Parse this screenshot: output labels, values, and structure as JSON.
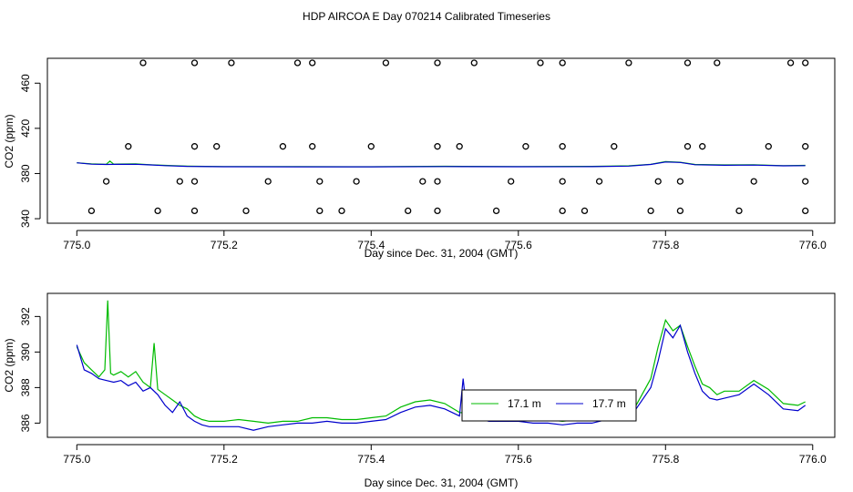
{
  "figure": {
    "title": "HDP AIRCOA E  Day 070214  Calibrated Timeseries"
  },
  "colors": {
    "green": "#00bb00",
    "blue": "#0000cc",
    "axis": "#000000"
  },
  "chart_data": [
    {
      "type": "line",
      "title": "",
      "xlabel": "Day since Dec. 31, 2004 (GMT)",
      "ylabel": "CO2 (ppm)",
      "xlim": [
        774.96,
        776.03
      ],
      "ylim": [
        336,
        482
      ],
      "xticks": [
        775.0,
        775.2,
        775.4,
        775.6,
        775.8,
        776.0
      ],
      "xtick_labels": [
        "775.0",
        "775.2",
        "775.4",
        "775.6",
        "775.8",
        "776.0"
      ],
      "yticks": [
        340,
        380,
        420,
        460
      ],
      "ytick_labels": [
        "340",
        "380",
        "420",
        "460"
      ],
      "grid": false,
      "legend": null,
      "series": [
        {
          "name": "",
          "color": "green",
          "x": [
            775.0,
            775.02,
            775.04,
            775.045,
            775.05,
            775.08,
            775.1,
            775.12,
            775.15,
            775.2,
            775.3,
            775.4,
            775.5,
            775.6,
            775.7,
            775.75,
            775.78,
            775.8,
            775.82,
            775.84,
            775.88,
            775.92,
            775.96,
            775.99
          ],
          "y": [
            389.5,
            388.5,
            388.2,
            391.0,
            388.3,
            388.6,
            387.8,
            387.2,
            386.6,
            386.2,
            386.1,
            386.0,
            386.4,
            386.2,
            386.3,
            386.8,
            388.2,
            390.5,
            390.0,
            388.0,
            387.6,
            387.8,
            387.0,
            387.2
          ]
        },
        {
          "name": "",
          "color": "blue",
          "x": [
            775.0,
            775.02,
            775.04,
            775.05,
            775.08,
            775.1,
            775.12,
            775.15,
            775.2,
            775.3,
            775.4,
            775.5,
            775.6,
            775.7,
            775.75,
            775.78,
            775.8,
            775.82,
            775.84,
            775.88,
            775.92,
            775.96,
            775.99
          ],
          "y": [
            389.5,
            388.3,
            388.0,
            388.1,
            388.2,
            387.6,
            387.0,
            386.3,
            386.0,
            385.9,
            385.9,
            386.2,
            386.0,
            386.1,
            386.6,
            388.0,
            390.2,
            389.8,
            387.8,
            387.3,
            387.5,
            386.8,
            387.0
          ]
        }
      ],
      "scatter": {
        "x": [
          775.09,
          775.16,
          775.21,
          775.3,
          775.32,
          775.42,
          775.49,
          775.54,
          775.63,
          775.66,
          775.75,
          775.83,
          775.87,
          775.97,
          775.99,
          775.07,
          775.16,
          775.19,
          775.28,
          775.32,
          775.4,
          775.49,
          775.52,
          775.61,
          775.66,
          775.73,
          775.83,
          775.85,
          775.94,
          775.99,
          775.04,
          775.14,
          775.16,
          775.26,
          775.33,
          775.38,
          775.47,
          775.49,
          775.59,
          775.66,
          775.71,
          775.79,
          775.82,
          775.92,
          775.99,
          775.02,
          775.11,
          775.16,
          775.23,
          775.33,
          775.36,
          775.45,
          775.49,
          775.57,
          775.66,
          775.69,
          775.78,
          775.82,
          775.9,
          775.99
        ],
        "y": [
          478,
          478,
          478,
          478,
          478,
          478,
          478,
          478,
          478,
          478,
          478,
          478,
          478,
          478,
          478,
          404,
          404,
          404,
          404,
          404,
          404,
          404,
          404,
          404,
          404,
          404,
          404,
          404,
          404,
          404,
          373,
          373,
          373,
          373,
          373,
          373,
          373,
          373,
          373,
          373,
          373,
          373,
          373,
          373,
          373,
          347,
          347,
          347,
          347,
          347,
          347,
          347,
          347,
          347,
          347,
          347,
          347,
          347,
          347,
          347
        ]
      }
    },
    {
      "type": "line",
      "title": "",
      "xlabel": "Day since Dec. 31, 2004 (GMT)",
      "ylabel": "CO2 (ppm)",
      "xlim": [
        774.96,
        776.03
      ],
      "ylim": [
        385.2,
        393.3
      ],
      "xticks": [
        775.0,
        775.2,
        775.4,
        775.6,
        775.8,
        776.0
      ],
      "xtick_labels": [
        "775.0",
        "775.2",
        "775.4",
        "775.6",
        "775.8",
        "776.0"
      ],
      "yticks": [
        386,
        388,
        390,
        392
      ],
      "ytick_labels": [
        "386",
        "388",
        "390",
        "392"
      ],
      "grid": false,
      "legend": "center",
      "series": [
        {
          "name": "17.1 m",
          "color": "green",
          "x": [
            775.0,
            775.01,
            775.02,
            775.03,
            775.038,
            775.042,
            775.046,
            775.05,
            775.06,
            775.07,
            775.08,
            775.09,
            775.1,
            775.105,
            775.11,
            775.12,
            775.13,
            775.14,
            775.15,
            775.16,
            775.17,
            775.18,
            775.2,
            775.22,
            775.24,
            775.26,
            775.28,
            775.3,
            775.32,
            775.34,
            775.36,
            775.38,
            775.4,
            775.42,
            775.44,
            775.46,
            775.48,
            775.5,
            775.52,
            775.54,
            775.56,
            775.58,
            775.6,
            775.62,
            775.64,
            775.66,
            775.68,
            775.7,
            775.72,
            775.74,
            775.76,
            775.78,
            775.79,
            775.8,
            775.81,
            775.82,
            775.83,
            775.84,
            775.85,
            775.86,
            775.87,
            775.88,
            775.9,
            775.92,
            775.94,
            775.96,
            775.98,
            775.99
          ],
          "y": [
            390.3,
            389.4,
            389.0,
            388.6,
            389.0,
            392.9,
            388.8,
            388.7,
            388.9,
            388.6,
            388.9,
            388.3,
            388.0,
            390.5,
            387.9,
            387.6,
            387.3,
            387.0,
            386.8,
            386.4,
            386.2,
            386.1,
            386.1,
            386.2,
            386.1,
            386.0,
            386.1,
            386.1,
            386.3,
            386.3,
            386.2,
            386.2,
            386.3,
            386.4,
            386.9,
            387.2,
            387.3,
            387.1,
            386.6,
            386.5,
            386.3,
            386.3,
            386.3,
            386.2,
            386.2,
            386.1,
            386.2,
            386.2,
            386.4,
            386.6,
            387.0,
            388.5,
            390.3,
            391.8,
            391.2,
            391.5,
            390.3,
            389.2,
            388.2,
            388.0,
            387.6,
            387.8,
            387.8,
            388.4,
            387.9,
            387.1,
            387.0,
            387.2
          ]
        },
        {
          "name": "17.7 m",
          "color": "blue",
          "x": [
            775.0,
            775.01,
            775.02,
            775.03,
            775.04,
            775.05,
            775.06,
            775.07,
            775.08,
            775.09,
            775.1,
            775.11,
            775.12,
            775.13,
            775.14,
            775.15,
            775.16,
            775.17,
            775.18,
            775.2,
            775.22,
            775.24,
            775.26,
            775.28,
            775.3,
            775.32,
            775.34,
            775.36,
            775.38,
            775.4,
            775.42,
            775.44,
            775.46,
            775.48,
            775.5,
            775.52,
            775.525,
            775.53,
            775.54,
            775.56,
            775.58,
            775.6,
            775.62,
            775.64,
            775.66,
            775.68,
            775.7,
            775.72,
            775.74,
            775.76,
            775.78,
            775.79,
            775.8,
            775.81,
            775.82,
            775.83,
            775.84,
            775.85,
            775.86,
            775.87,
            775.88,
            775.9,
            775.92,
            775.94,
            775.96,
            775.98,
            775.99
          ],
          "y": [
            390.4,
            389.0,
            388.8,
            388.5,
            388.4,
            388.3,
            388.4,
            388.1,
            388.3,
            387.8,
            388.0,
            387.6,
            387.0,
            386.6,
            387.2,
            386.4,
            386.1,
            385.9,
            385.8,
            385.8,
            385.8,
            385.6,
            385.8,
            385.9,
            386.0,
            386.0,
            386.1,
            386.0,
            386.0,
            386.1,
            386.2,
            386.6,
            386.9,
            387.0,
            386.8,
            386.4,
            388.5,
            386.5,
            386.3,
            386.1,
            386.1,
            386.1,
            386.0,
            386.0,
            385.9,
            386.0,
            386.0,
            386.2,
            386.4,
            386.8,
            388.0,
            389.5,
            391.3,
            390.8,
            391.5,
            390.0,
            388.8,
            387.8,
            387.4,
            387.3,
            387.4,
            387.6,
            388.2,
            387.6,
            386.8,
            386.7,
            387.0
          ]
        }
      ]
    }
  ]
}
